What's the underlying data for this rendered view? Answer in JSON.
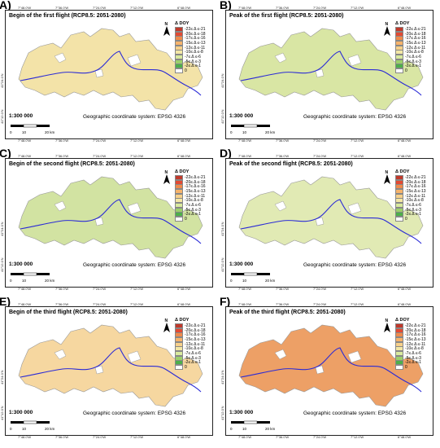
{
  "panels": [
    {
      "label": "A)",
      "title": "Begin of the first flight (RCP8.5: 2051-2080)",
      "fill": "#f3e3a8"
    },
    {
      "label": "B)",
      "title": "Peak of the first flight (RCP8.5: 2051-2080)",
      "fill": "#d9e6a4"
    },
    {
      "label": "C)",
      "title": "Begin of the second flight (RCP8.5: 2051-2080)",
      "fill": "#d2e3a2"
    },
    {
      "label": "D)",
      "title": "Peak of the second flight (RCP8.5: 2051-2080)",
      "fill": "#e1eab4"
    },
    {
      "label": "E)",
      "title": "Begin of the third flight (RCP8.5: 2051-2080)",
      "fill": "#f6d7a0"
    },
    {
      "label": "F)",
      "title": "Peak of the third flight (RCP8.5: 2051-2080)",
      "fill": "#eda066"
    }
  ],
  "legend": {
    "title": "Δ DOY",
    "classes": [
      {
        "label": "-22≤ Δ ≤-21",
        "color": "#c0392b"
      },
      {
        "label": "-20≤ Δ ≤-18",
        "color": "#e34a33"
      },
      {
        "label": "-17≤ Δ ≤-16",
        "color": "#f08a4b"
      },
      {
        "label": "-15≤ Δ ≤-13",
        "color": "#f6b36b"
      },
      {
        "label": "-12≤ Δ ≤-11",
        "color": "#f7d08a"
      },
      {
        "label": "-10≤ Δ ≤-8",
        "color": "#f4e7a5"
      },
      {
        "label": "-7≤ Δ ≤-6",
        "color": "#d9ea9e"
      },
      {
        "label": "-5≤ Δ ≤-3",
        "color": "#9ccf6b"
      },
      {
        "label": "-2≤ Δ ≤-1",
        "color": "#4daf4a"
      },
      {
        "label": "0",
        "color": "#ffffff"
      }
    ]
  },
  "map_text": {
    "scale": "1:300 000",
    "crs": "Geographic coordinate system: EPSG 4326",
    "scalebar_ticks": [
      "0",
      "10",
      "20 km"
    ],
    "north": "N"
  },
  "longitudes": [
    "7°48.0'W",
    "7°36.0'W",
    "7°24.0'W",
    "7°12.0'W",
    "6°48.0'W"
  ],
  "latitudes": [
    "41°24.0'N",
    "41°12.0'N"
  ],
  "colors": {
    "river": "#2b2bd6",
    "frame": "#222222"
  }
}
